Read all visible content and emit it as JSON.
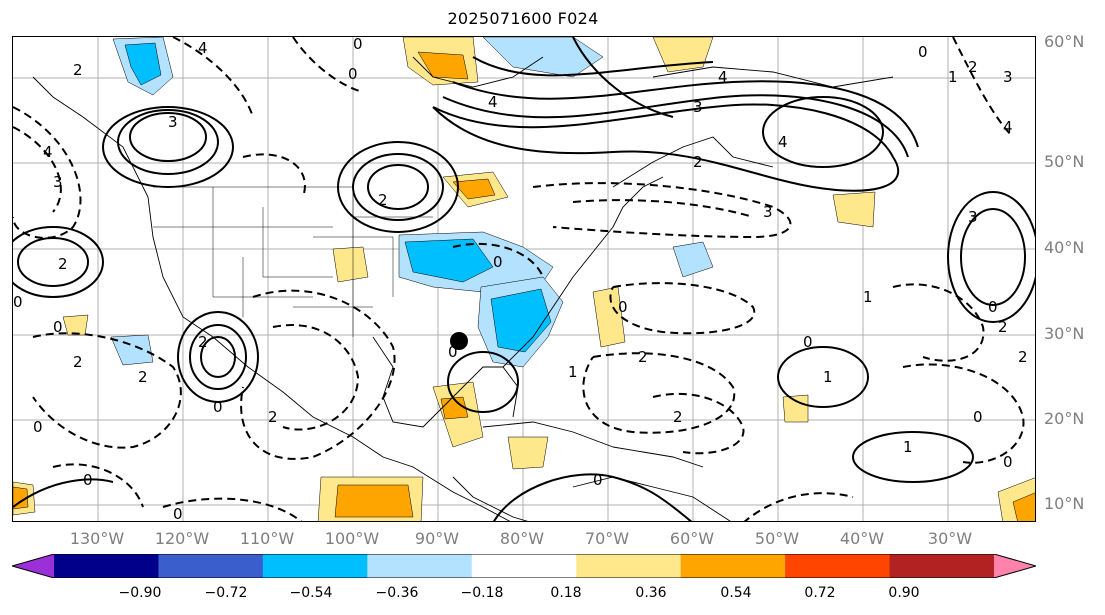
{
  "title": "2025071600 F024",
  "latitude_labels": [
    "60°N",
    "50°N",
    "40°N",
    "30°N",
    "20°N",
    "10°N"
  ],
  "longitude_labels": [
    "130°W",
    "120°W",
    "110°W",
    "100°W",
    "90°W",
    "80°W",
    "70°W",
    "60°W",
    "50°W",
    "40°W",
    "30°W"
  ],
  "contour_labels": {
    "zero": "0",
    "one": "1",
    "two": "2",
    "three": "3",
    "four": "4"
  },
  "colorbar": {
    "ticks": [
      "−0.90",
      "−0.72",
      "−0.54",
      "−0.36",
      "−0.18",
      "0.18",
      "0.36",
      "0.54",
      "0.72",
      "0.90"
    ],
    "colors": [
      "#9b30d9",
      "#00008b",
      "#3a5fcd",
      "#00bfff",
      "#b2e2ff",
      "#ffffff",
      "#ffe88c",
      "#ffa500",
      "#ff4500",
      "#b22222",
      "#ff82ab"
    ],
    "extend": "both"
  },
  "marker": {
    "label": "",
    "color": "#000000"
  },
  "colors": {
    "axis_label": "#7f7f7f",
    "contour": "#000000",
    "grid": "#b0b0b0"
  }
}
